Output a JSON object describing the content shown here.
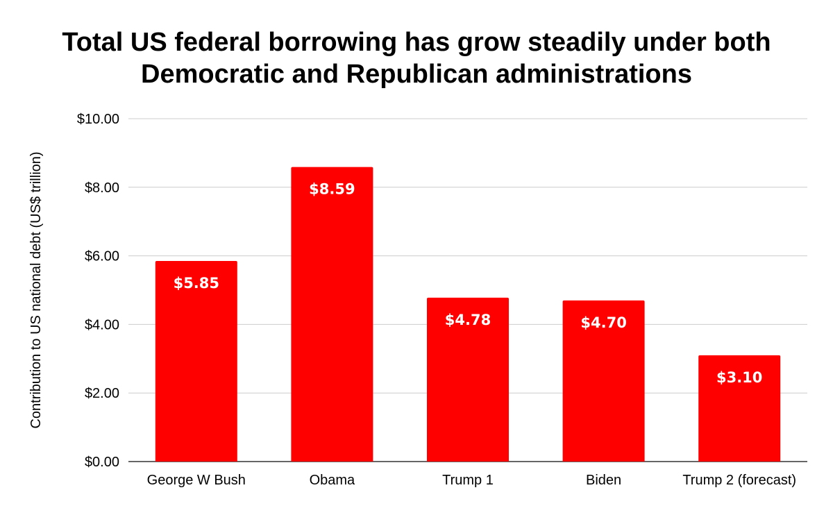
{
  "chart_data": {
    "type": "bar",
    "title_lines": [
      "Total US federal borrowing has grow steadily under both",
      "Democratic and Republican administrations"
    ],
    "categories": [
      "George W Bush",
      "Obama",
      "Trump 1",
      "Biden",
      "Trump 2 (forecast)"
    ],
    "values": [
      5.85,
      8.59,
      4.78,
      4.7,
      3.1
    ],
    "data_labels": [
      "$5.85",
      "$8.59",
      "$4.78",
      "$4.70",
      "$3.10"
    ],
    "xlabel": "",
    "ylabel": "Contribution to US national debt (US$ trillion)",
    "ylim": [
      0,
      10
    ],
    "yticks": [
      0,
      2,
      4,
      6,
      8,
      10
    ],
    "ytick_labels": [
      "$0.00",
      "$2.00",
      "$4.00",
      "$6.00",
      "$8.00",
      "$10.00"
    ],
    "bar_color": "#ff0000",
    "gridlines": true,
    "legend": "none"
  }
}
